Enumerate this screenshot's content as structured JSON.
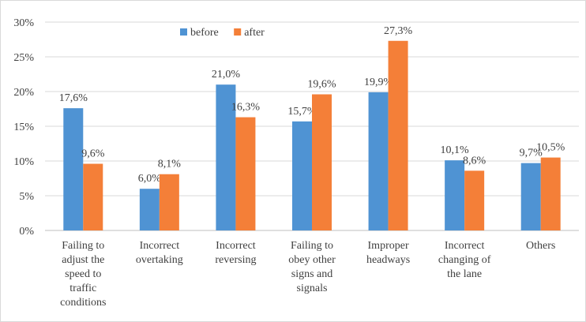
{
  "chart_data": {
    "type": "bar",
    "categories": [
      [
        "Failing to",
        "adjust the",
        "speed to",
        "traffic",
        "conditions"
      ],
      [
        "Incorrect",
        "overtaking"
      ],
      [
        "Incorrect",
        "reversing"
      ],
      [
        "Failing to",
        "obey other",
        "signs and",
        "signals"
      ],
      [
        "Improper",
        "headways"
      ],
      [
        "Incorrect",
        "changing of",
        "the lane"
      ],
      [
        "Others"
      ]
    ],
    "series": [
      {
        "name": "before",
        "color": "#4f93d3",
        "values": [
          17.6,
          6.0,
          21.0,
          15.7,
          19.9,
          10.1,
          9.7
        ],
        "labels": [
          "17,6%",
          "6,0%",
          "21,0%",
          "15,7%",
          "19,9%",
          "10,1%",
          "9,7%"
        ]
      },
      {
        "name": "after",
        "color": "#f47f38",
        "values": [
          9.6,
          8.1,
          16.3,
          19.6,
          27.3,
          8.6,
          10.5
        ],
        "labels": [
          "9,6%",
          "8,1%",
          "16,3%",
          "19,6%",
          "27,3%",
          "8,6%",
          "10,5%"
        ]
      }
    ],
    "yticks": [
      {
        "value": 0,
        "label": "0%"
      },
      {
        "value": 5,
        "label": "5%"
      },
      {
        "value": 10,
        "label": "10%"
      },
      {
        "value": 15,
        "label": "15%"
      },
      {
        "value": 20,
        "label": "20%"
      },
      {
        "value": 25,
        "label": "25%"
      },
      {
        "value": 30,
        "label": "30%"
      }
    ],
    "ylim": [
      0,
      30
    ],
    "grid": true,
    "legend": "top-left",
    "title": "",
    "xlabel": "",
    "ylabel": ""
  }
}
